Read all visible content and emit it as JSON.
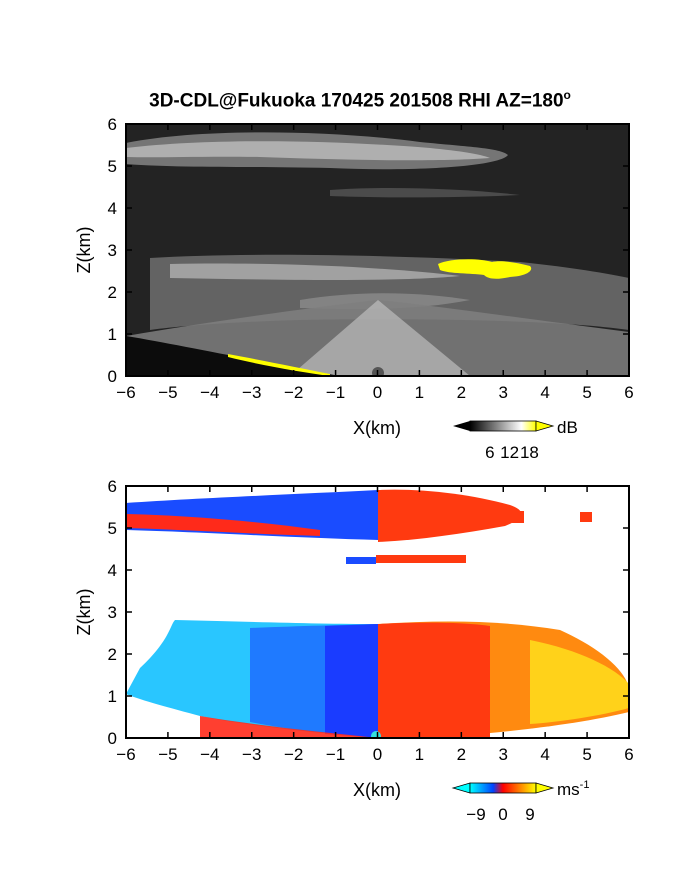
{
  "figure": {
    "title": "3D-CDL@Fukuoka 170425 201508 RHI AZ=180",
    "title_superscript": "o"
  },
  "chart_data": [
    {
      "type": "heatmap",
      "panel": "top",
      "quantity": "backscatter intensity",
      "xlabel": "X(km)",
      "ylabel": "Z(km)",
      "xlim": [
        -6,
        6
      ],
      "ylim": [
        0,
        6
      ],
      "x_ticks": [
        "-6",
        "-5",
        "-4",
        "-3",
        "-2",
        "-1",
        "0",
        "1",
        "2",
        "3",
        "4",
        "5",
        "6"
      ],
      "y_ticks": [
        "0",
        "1",
        "2",
        "3",
        "4",
        "5",
        "6"
      ],
      "colorbar": {
        "unit": "dB",
        "ticks": [
          "6",
          "12",
          "18"
        ],
        "range": [
          0,
          20
        ],
        "colors": [
          "#000000",
          "#ffffff",
          "#ffff00"
        ]
      },
      "features": [
        {
          "label": "upper cloud layer",
          "x": [
            -6,
            3.1
          ],
          "z": [
            4.9,
            5.8
          ],
          "level_db": 12
        },
        {
          "label": "mid aerosol layer",
          "x": [
            -5.5,
            4.5
          ],
          "z": [
            2.0,
            2.8
          ],
          "level_db": 10
        },
        {
          "label": "strong echo",
          "x": [
            1.4,
            3.7
          ],
          "z": [
            2.3,
            2.7
          ],
          "level_db": 19
        },
        {
          "label": "ground clutter",
          "x": [
            -3.5,
            -0.6
          ],
          "z": [
            0.0,
            0.5
          ],
          "level_db": 19
        }
      ]
    },
    {
      "type": "heatmap",
      "panel": "bottom",
      "quantity": "Doppler velocity",
      "xlabel": "X(km)",
      "ylabel": "Z(km)",
      "xlim": [
        -6,
        6
      ],
      "ylim": [
        0,
        6
      ],
      "x_ticks": [
        "-6",
        "-5",
        "-4",
        "-3",
        "-2",
        "-1",
        "0",
        "1",
        "2",
        "3",
        "4",
        "5",
        "6"
      ],
      "y_ticks": [
        "0",
        "1",
        "2",
        "3",
        "4",
        "5",
        "6"
      ],
      "colorbar": {
        "unit": "ms",
        "unit_superscript": "-1",
        "ticks": [
          "-9",
          "0",
          "9"
        ],
        "range": [
          -11,
          11
        ],
        "colors": [
          "#00ffff",
          "#0044ff",
          "#ff0000",
          "#ffff00"
        ]
      },
      "features": [
        {
          "label": "upper layer approaching",
          "x": [
            -6,
            0
          ],
          "z": [
            4.9,
            5.9
          ],
          "velocity": -4
        },
        {
          "label": "upper layer receding",
          "x": [
            0,
            3.5
          ],
          "z": [
            4.9,
            5.9
          ],
          "velocity": 4
        },
        {
          "label": "thin layer",
          "x": [
            -0.7,
            2.1
          ],
          "z": [
            4.1,
            4.4
          ],
          "velocity": 4
        },
        {
          "label": "lower layer approaching",
          "x": [
            -5.5,
            0
          ],
          "z": [
            0.0,
            2.8
          ],
          "velocity": -7
        },
        {
          "label": "lower layer receding",
          "x": [
            0,
            6
          ],
          "z": [
            0.0,
            2.8
          ],
          "velocity": 6
        }
      ]
    }
  ]
}
